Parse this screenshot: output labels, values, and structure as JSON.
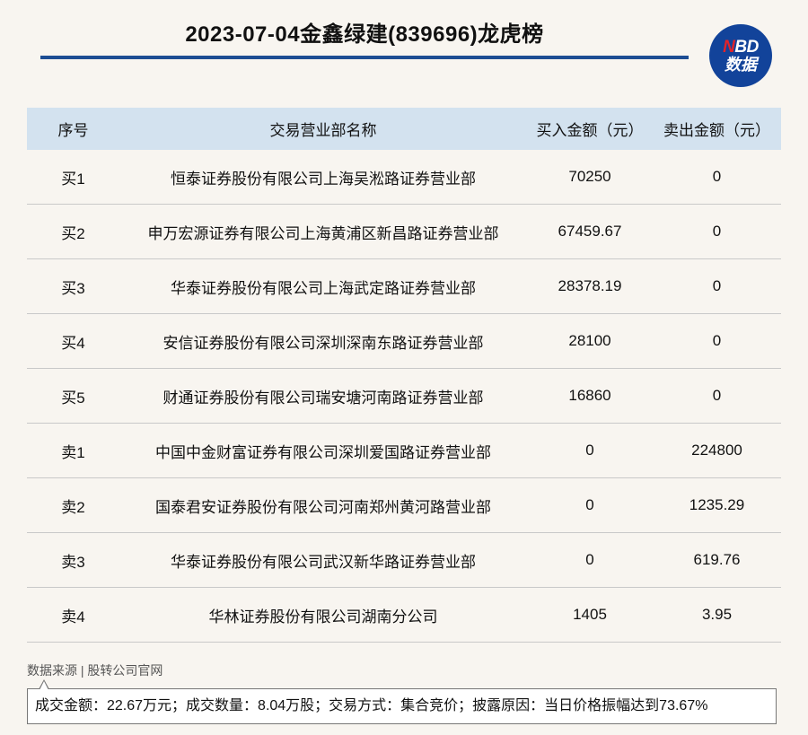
{
  "header": {
    "title": "2023-07-04金鑫绿建(839696)龙虎榜",
    "logo_top_n": "N",
    "logo_top_rest": "BD",
    "logo_bottom": "数据"
  },
  "table": {
    "columns": [
      "序号",
      "交易营业部名称",
      "买入金额（元）",
      "卖出金额（元）"
    ],
    "rows": [
      {
        "seq": "买1",
        "name": "恒泰证券股份有限公司上海吴淞路证券营业部",
        "buy": "70250",
        "sell": "0"
      },
      {
        "seq": "买2",
        "name": "申万宏源证券有限公司上海黄浦区新昌路证券营业部",
        "buy": "67459.67",
        "sell": "0"
      },
      {
        "seq": "买3",
        "name": "华泰证券股份有限公司上海武定路证券营业部",
        "buy": "28378.19",
        "sell": "0"
      },
      {
        "seq": "买4",
        "name": "安信证券股份有限公司深圳深南东路证券营业部",
        "buy": "28100",
        "sell": "0"
      },
      {
        "seq": "买5",
        "name": "财通证券股份有限公司瑞安塘河南路证券营业部",
        "buy": "16860",
        "sell": "0"
      },
      {
        "seq": "卖1",
        "name": "中国中金财富证券有限公司深圳爱国路证券营业部",
        "buy": "0",
        "sell": "224800"
      },
      {
        "seq": "卖2",
        "name": "国泰君安证券股份有限公司河南郑州黄河路营业部",
        "buy": "0",
        "sell": "1235.29"
      },
      {
        "seq": "卖3",
        "name": "华泰证券股份有限公司武汉新华路证券营业部",
        "buy": "0",
        "sell": "619.76"
      },
      {
        "seq": "卖4",
        "name": "华林证券股份有限公司湖南分公司",
        "buy": "1405",
        "sell": "3.95"
      }
    ]
  },
  "footer": {
    "source": "数据来源 | 股转公司官网",
    "summary": "成交金额：22.67万元；成交数量：8.04万股；交易方式：集合竞价；披露原因：当日价格振幅达到73.67%"
  },
  "colors": {
    "accent_blue": "#1d4d93",
    "header_bg": "#d3e2ef",
    "logo_red": "#e2232a"
  }
}
